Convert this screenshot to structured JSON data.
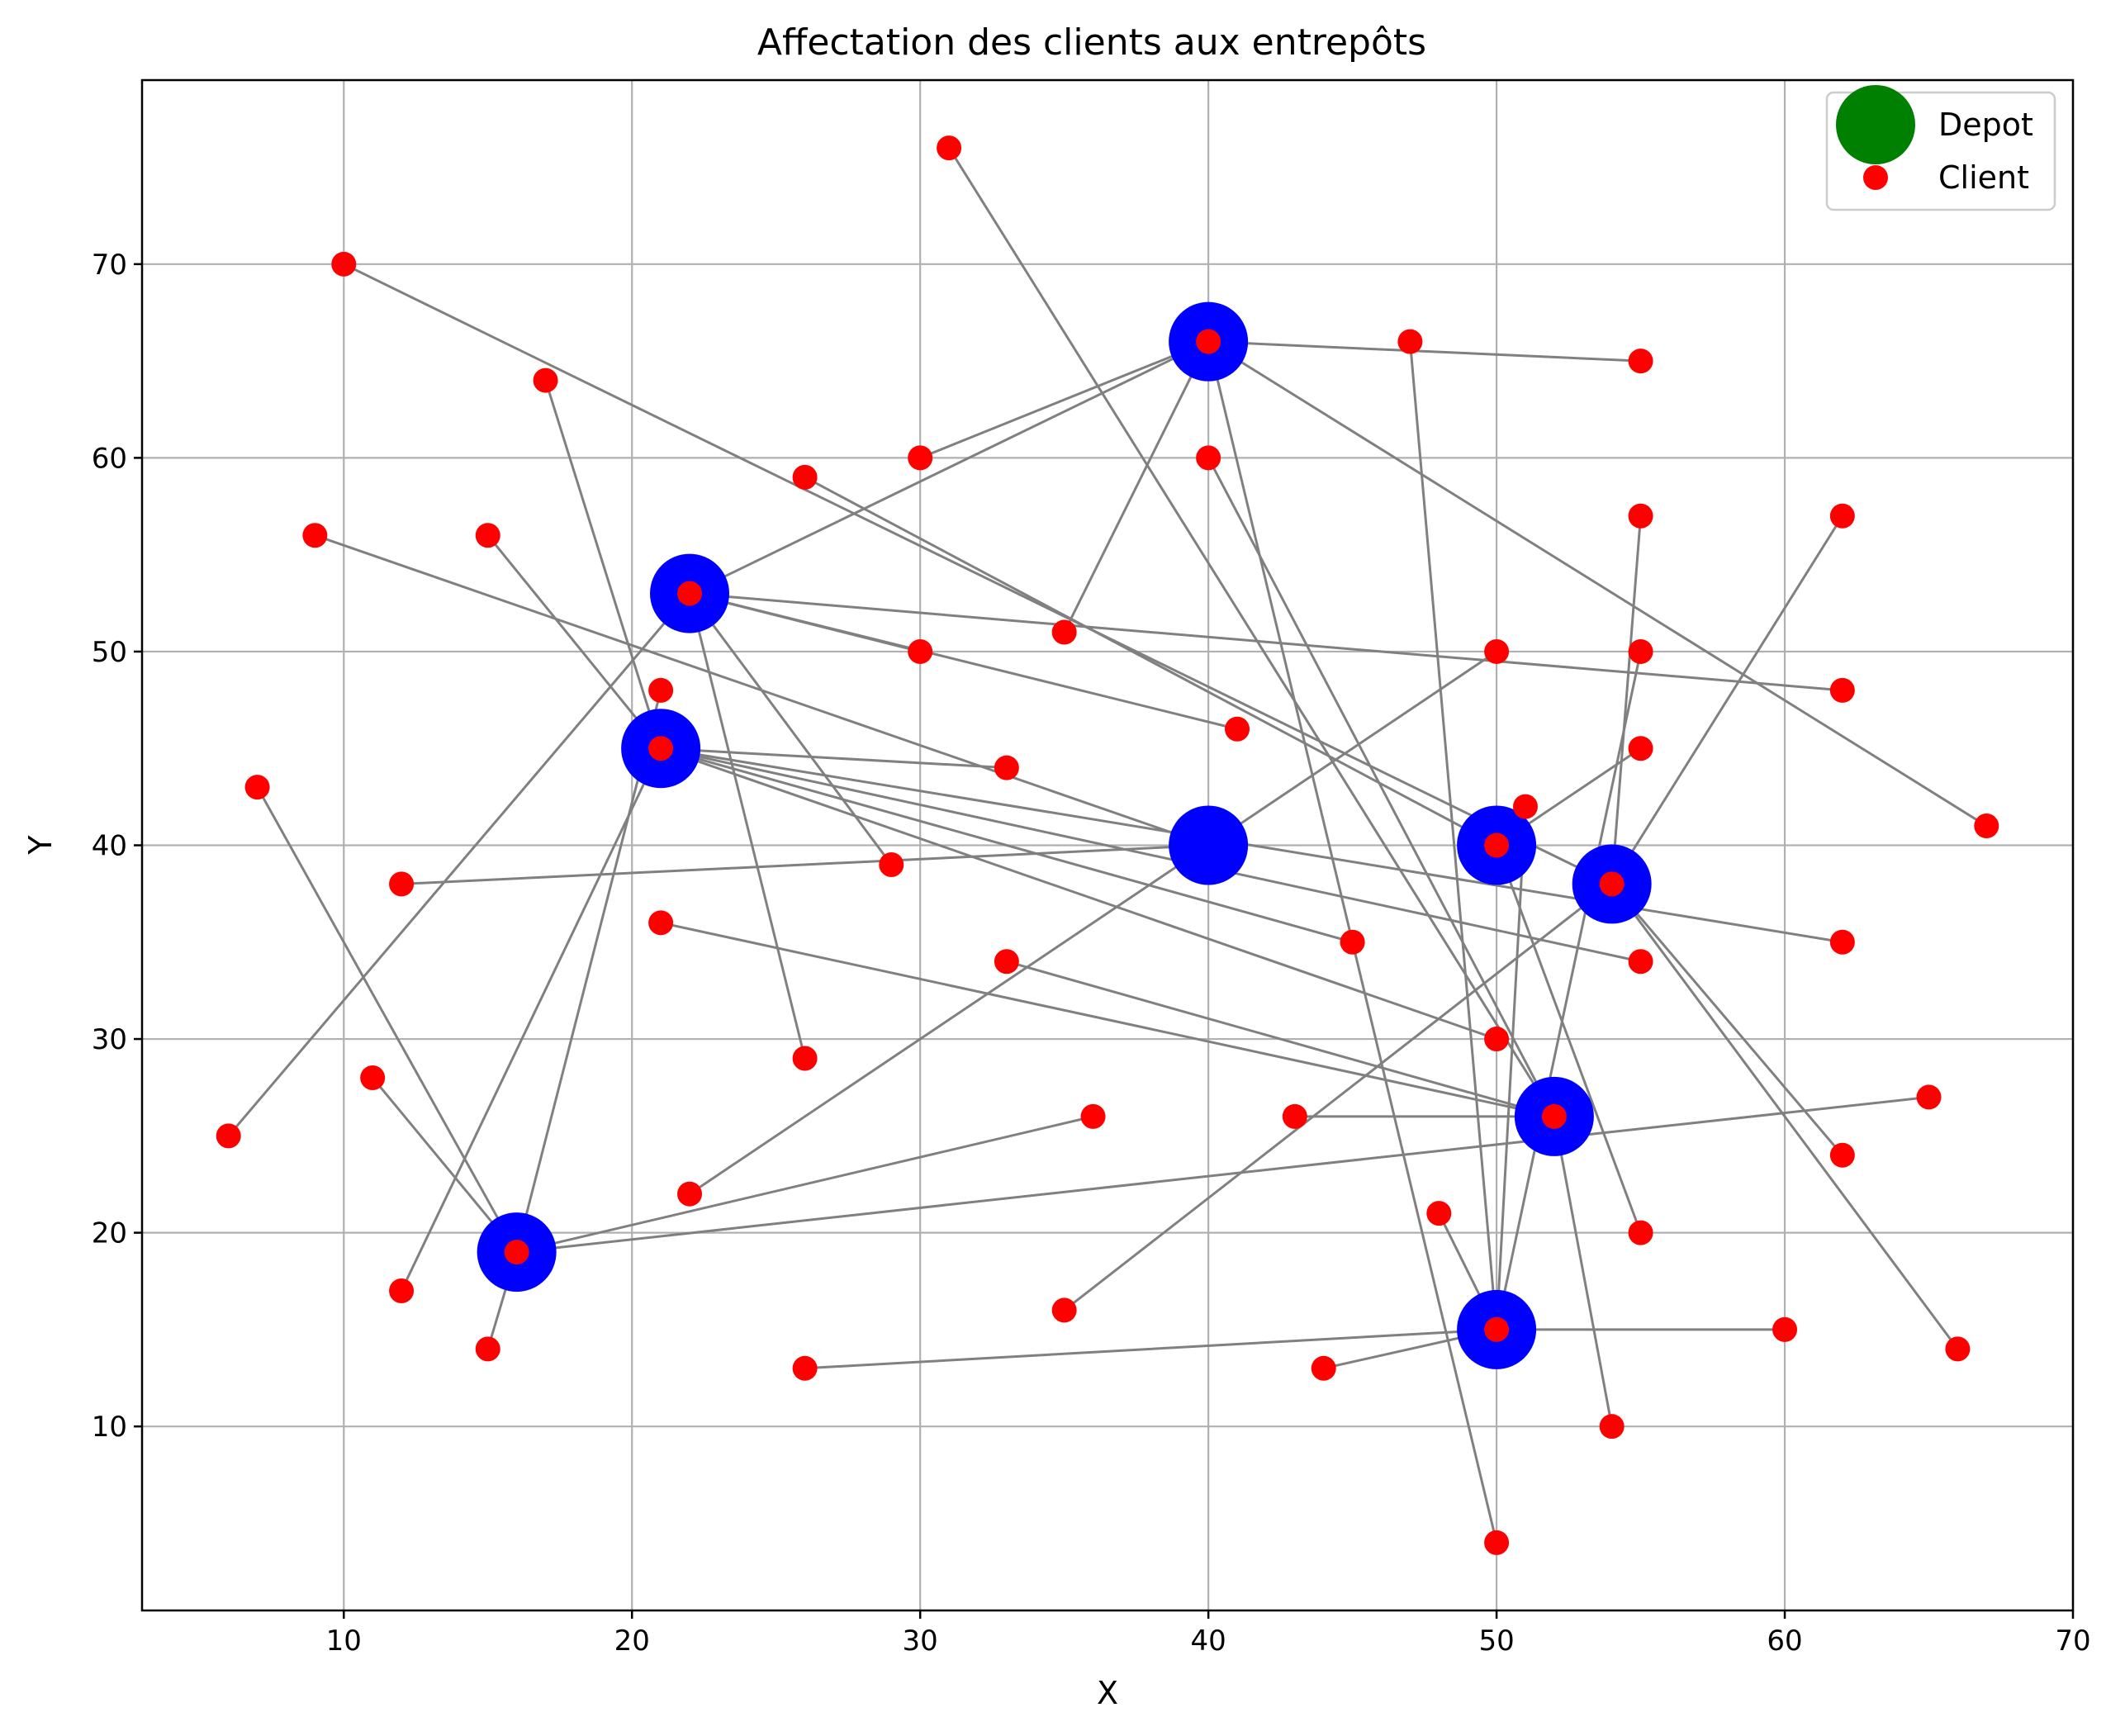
{
  "chart_data": {
    "type": "scatter",
    "title": "Affectation des clients aux entrepôts",
    "xlabel": "X",
    "ylabel": "Y",
    "xlim": [
      3,
      70
    ],
    "ylim": [
      0.5,
      79.5
    ],
    "xticks": [
      10,
      20,
      30,
      40,
      50,
      60,
      70
    ],
    "yticks": [
      10,
      20,
      30,
      40,
      50,
      60,
      70
    ],
    "grid": true,
    "legend": {
      "placement": "top-right",
      "entries": [
        {
          "label": "Depot",
          "color": "#008000",
          "marker": "circle-large"
        },
        {
          "label": "Client",
          "color": "#ff0000",
          "marker": "circle-small"
        }
      ]
    },
    "colors": {
      "open_depot": "#0000ff",
      "client": "#ff0000",
      "assignment_arrow": "#808080",
      "grid": "#b0b0b0"
    },
    "depots": [
      {
        "x": 40,
        "y": 66
      },
      {
        "x": 22,
        "y": 53
      },
      {
        "x": 21,
        "y": 45
      },
      {
        "x": 40,
        "y": 40
      },
      {
        "x": 50,
        "y": 40
      },
      {
        "x": 54,
        "y": 38
      },
      {
        "x": 52,
        "y": 26
      },
      {
        "x": 16,
        "y": 19
      },
      {
        "x": 50,
        "y": 15
      }
    ],
    "clients": [
      {
        "x": 31,
        "y": 76
      },
      {
        "x": 10,
        "y": 70
      },
      {
        "x": 40,
        "y": 66
      },
      {
        "x": 47,
        "y": 66
      },
      {
        "x": 55,
        "y": 65
      },
      {
        "x": 17,
        "y": 64
      },
      {
        "x": 30,
        "y": 60
      },
      {
        "x": 40,
        "y": 60
      },
      {
        "x": 26,
        "y": 59
      },
      {
        "x": 55,
        "y": 57
      },
      {
        "x": 62,
        "y": 57
      },
      {
        "x": 9,
        "y": 56
      },
      {
        "x": 15,
        "y": 56
      },
      {
        "x": 22,
        "y": 53
      },
      {
        "x": 35,
        "y": 51
      },
      {
        "x": 30,
        "y": 50
      },
      {
        "x": 50,
        "y": 50
      },
      {
        "x": 55,
        "y": 50
      },
      {
        "x": 21,
        "y": 48
      },
      {
        "x": 62,
        "y": 48
      },
      {
        "x": 41,
        "y": 46
      },
      {
        "x": 21,
        "y": 45
      },
      {
        "x": 55,
        "y": 45
      },
      {
        "x": 33,
        "y": 44
      },
      {
        "x": 7,
        "y": 43
      },
      {
        "x": 51,
        "y": 42
      },
      {
        "x": 67,
        "y": 41
      },
      {
        "x": 50,
        "y": 40
      },
      {
        "x": 29,
        "y": 39
      },
      {
        "x": 12,
        "y": 38
      },
      {
        "x": 54,
        "y": 38
      },
      {
        "x": 21,
        "y": 36
      },
      {
        "x": 45,
        "y": 35
      },
      {
        "x": 62,
        "y": 35
      },
      {
        "x": 33,
        "y": 34
      },
      {
        "x": 55,
        "y": 34
      },
      {
        "x": 50,
        "y": 30
      },
      {
        "x": 26,
        "y": 29
      },
      {
        "x": 11,
        "y": 28
      },
      {
        "x": 65,
        "y": 27
      },
      {
        "x": 36,
        "y": 26
      },
      {
        "x": 43,
        "y": 26
      },
      {
        "x": 52,
        "y": 26
      },
      {
        "x": 6,
        "y": 25
      },
      {
        "x": 62,
        "y": 24
      },
      {
        "x": 22,
        "y": 22
      },
      {
        "x": 48,
        "y": 21
      },
      {
        "x": 55,
        "y": 20
      },
      {
        "x": 16,
        "y": 19
      },
      {
        "x": 12,
        "y": 17
      },
      {
        "x": 35,
        "y": 16
      },
      {
        "x": 50,
        "y": 15
      },
      {
        "x": 60,
        "y": 15
      },
      {
        "x": 15,
        "y": 14
      },
      {
        "x": 66,
        "y": 14
      },
      {
        "x": 26,
        "y": 13
      },
      {
        "x": 44,
        "y": 13
      },
      {
        "x": 54,
        "y": 10
      },
      {
        "x": 50,
        "y": 4
      }
    ],
    "assignments": [
      {
        "from": [
          40,
          66
        ],
        "to": [
          55,
          65
        ]
      },
      {
        "from": [
          40,
          66
        ],
        "to": [
          30,
          60
        ]
      },
      {
        "from": [
          40,
          66
        ],
        "to": [
          35,
          51
        ]
      },
      {
        "from": [
          40,
          66
        ],
        "to": [
          67,
          41
        ]
      },
      {
        "from": [
          40,
          66
        ],
        "to": [
          22,
          53
        ]
      },
      {
        "from": [
          40,
          66
        ],
        "to": [
          40,
          66
        ]
      },
      {
        "from": [
          22,
          53
        ],
        "to": [
          62,
          48
        ]
      },
      {
        "from": [
          22,
          53
        ],
        "to": [
          30,
          50
        ]
      },
      {
        "from": [
          22,
          53
        ],
        "to": [
          41,
          46
        ]
      },
      {
        "from": [
          22,
          53
        ],
        "to": [
          29,
          39
        ]
      },
      {
        "from": [
          22,
          53
        ],
        "to": [
          26,
          29
        ]
      },
      {
        "from": [
          22,
          53
        ],
        "to": [
          6,
          25
        ]
      },
      {
        "from": [
          22,
          53
        ],
        "to": [
          22,
          53
        ]
      },
      {
        "from": [
          21,
          45
        ],
        "to": [
          17,
          64
        ]
      },
      {
        "from": [
          21,
          45
        ],
        "to": [
          15,
          56
        ]
      },
      {
        "from": [
          21,
          45
        ],
        "to": [
          33,
          44
        ]
      },
      {
        "from": [
          21,
          45
        ],
        "to": [
          62,
          35
        ]
      },
      {
        "from": [
          21,
          45
        ],
        "to": [
          45,
          35
        ]
      },
      {
        "from": [
          21,
          45
        ],
        "to": [
          50,
          30
        ]
      },
      {
        "from": [
          21,
          45
        ],
        "to": [
          55,
          34
        ]
      },
      {
        "from": [
          21,
          45
        ],
        "to": [
          21,
          45
        ]
      },
      {
        "from": [
          40,
          40
        ],
        "to": [
          9,
          56
        ]
      },
      {
        "from": [
          40,
          40
        ],
        "to": [
          12,
          38
        ]
      },
      {
        "from": [
          40,
          40
        ],
        "to": [
          50,
          50
        ]
      },
      {
        "from": [
          40,
          40
        ],
        "to": [
          22,
          22
        ]
      },
      {
        "from": [
          50,
          40
        ],
        "to": [
          26,
          59
        ]
      },
      {
        "from": [
          50,
          40
        ],
        "to": [
          55,
          45
        ]
      },
      {
        "from": [
          50,
          40
        ],
        "to": [
          55,
          20
        ]
      },
      {
        "from": [
          50,
          40
        ],
        "to": [
          50,
          40
        ]
      },
      {
        "from": [
          54,
          38
        ],
        "to": [
          10,
          70
        ]
      },
      {
        "from": [
          54,
          38
        ],
        "to": [
          62,
          57
        ]
      },
      {
        "from": [
          54,
          38
        ],
        "to": [
          55,
          57
        ]
      },
      {
        "from": [
          54,
          38
        ],
        "to": [
          62,
          24
        ]
      },
      {
        "from": [
          54,
          38
        ],
        "to": [
          66,
          14
        ]
      },
      {
        "from": [
          54,
          38
        ],
        "to": [
          35,
          16
        ]
      },
      {
        "from": [
          54,
          38
        ],
        "to": [
          54,
          38
        ]
      },
      {
        "from": [
          52,
          26
        ],
        "to": [
          31,
          76
        ]
      },
      {
        "from": [
          52,
          26
        ],
        "to": [
          40,
          60
        ]
      },
      {
        "from": [
          52,
          26
        ],
        "to": [
          21,
          36
        ]
      },
      {
        "from": [
          52,
          26
        ],
        "to": [
          33,
          34
        ]
      },
      {
        "from": [
          52,
          26
        ],
        "to": [
          43,
          26
        ]
      },
      {
        "from": [
          52,
          26
        ],
        "to": [
          54,
          10
        ]
      },
      {
        "from": [
          52,
          26
        ],
        "to": [
          52,
          26
        ]
      },
      {
        "from": [
          16,
          19
        ],
        "to": [
          21,
          48
        ]
      },
      {
        "from": [
          16,
          19
        ],
        "to": [
          7,
          43
        ]
      },
      {
        "from": [
          16,
          19
        ],
        "to": [
          11,
          28
        ]
      },
      {
        "from": [
          16,
          19
        ],
        "to": [
          36,
          26
        ]
      },
      {
        "from": [
          16,
          19
        ],
        "to": [
          65,
          27
        ]
      },
      {
        "from": [
          16,
          19
        ],
        "to": [
          15,
          14
        ]
      },
      {
        "from": [
          16,
          19
        ],
        "to": [
          16,
          19
        ]
      },
      {
        "from": [
          50,
          15
        ],
        "to": [
          47,
          66
        ]
      },
      {
        "from": [
          50,
          15
        ],
        "to": [
          55,
          50
        ]
      },
      {
        "from": [
          50,
          15
        ],
        "to": [
          51,
          42
        ]
      },
      {
        "from": [
          50,
          15
        ],
        "to": [
          48,
          21
        ]
      },
      {
        "from": [
          50,
          15
        ],
        "to": [
          60,
          15
        ]
      },
      {
        "from": [
          50,
          15
        ],
        "to": [
          26,
          13
        ]
      },
      {
        "from": [
          50,
          15
        ],
        "to": [
          44,
          13
        ]
      },
      {
        "from": [
          50,
          15
        ],
        "to": [
          50,
          15
        ]
      },
      {
        "from": [
          40,
          66
        ],
        "to": [
          50,
          4
        ]
      },
      {
        "from": [
          21,
          45
        ],
        "to": [
          12,
          17
        ]
      }
    ]
  }
}
